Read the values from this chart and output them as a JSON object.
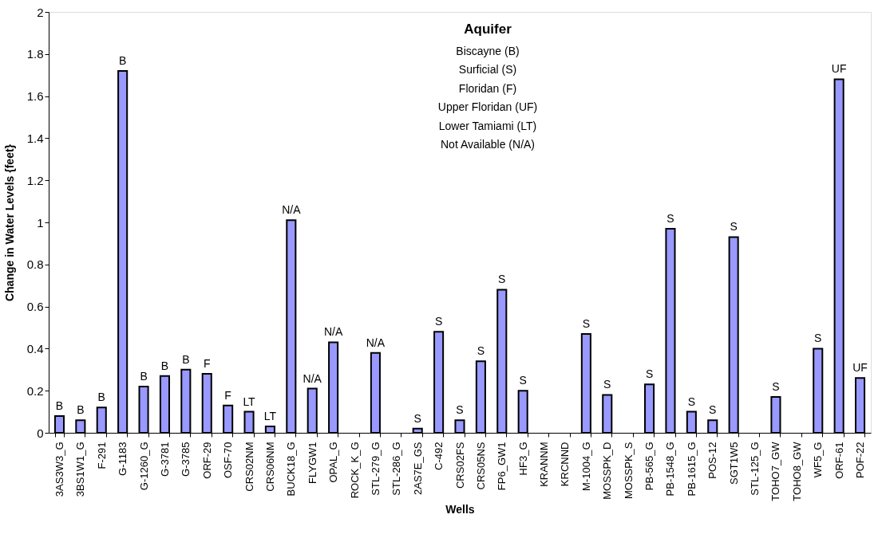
{
  "chart_data": {
    "type": "bar",
    "xlabel": "Wells",
    "ylabel": "Change in Water Levels {feet}",
    "categories": [
      "3AS3W3_G",
      "3BS1W1_G",
      "F-291",
      "G-1183",
      "G-1260_G",
      "G-3781",
      "G-3785",
      "ORF-29",
      "OSF-70",
      "CRS02NM",
      "CRS06NM",
      "BUCK18_G",
      "FLYGW1",
      "OPAL_G",
      "ROCK_K_G",
      "STL-279_G",
      "STL-286_G",
      "2AS7E_GS",
      "C-492",
      "CRS02FS",
      "CRS05NS",
      "FP6_GW1",
      "HF3_G",
      "KRANNM",
      "KRCNND",
      "M-1004_G",
      "MOSSPK_D",
      "MOSSPK_S",
      "PB-565_G",
      "PB-1548_G",
      "PB-1615_G",
      "POS-12",
      "SGT1W5",
      "STL-125_G",
      "TOHO7_GW",
      "TOHO8_GW",
      "WF5_G",
      "ORF-61",
      "POF-22"
    ],
    "values": [
      0.08,
      0.06,
      0.12,
      1.72,
      0.22,
      0.27,
      0.3,
      0.28,
      0.13,
      0.1,
      0.03,
      1.01,
      0.21,
      0.43,
      null,
      0.38,
      null,
      0.02,
      0.48,
      0.06,
      0.34,
      0.68,
      0.2,
      null,
      null,
      0.47,
      0.18,
      null,
      0.23,
      0.97,
      0.1,
      0.06,
      0.93,
      null,
      0.17,
      null,
      0.4,
      1.68,
      0.26
    ],
    "value_labels": [
      "B",
      "B",
      "B",
      "B",
      "B",
      "B",
      "B",
      "F",
      "F",
      "LT",
      "LT",
      "N/A",
      "N/A",
      "N/A",
      null,
      "N/A",
      null,
      "S",
      "S",
      "S",
      "S",
      "S",
      "S",
      null,
      null,
      "S",
      "S",
      null,
      "S",
      "S",
      "S",
      "S",
      "S",
      null,
      "S",
      null,
      "S",
      "UF",
      "UF"
    ],
    "color": "#9999ff",
    "ylim": [
      0,
      2
    ],
    "yticks": [
      0,
      0.2,
      0.4,
      0.6,
      0.8,
      1,
      1.2,
      1.4,
      1.6,
      1.8,
      2
    ],
    "grid": false,
    "annotations": [
      "Aquifer",
      "Biscayne (B)",
      "Surficial (S)",
      "Floridan (F)",
      "Upper Floridan (UF)",
      "Lower Tamiami (LT)",
      "Not Available (N/A)"
    ]
  }
}
